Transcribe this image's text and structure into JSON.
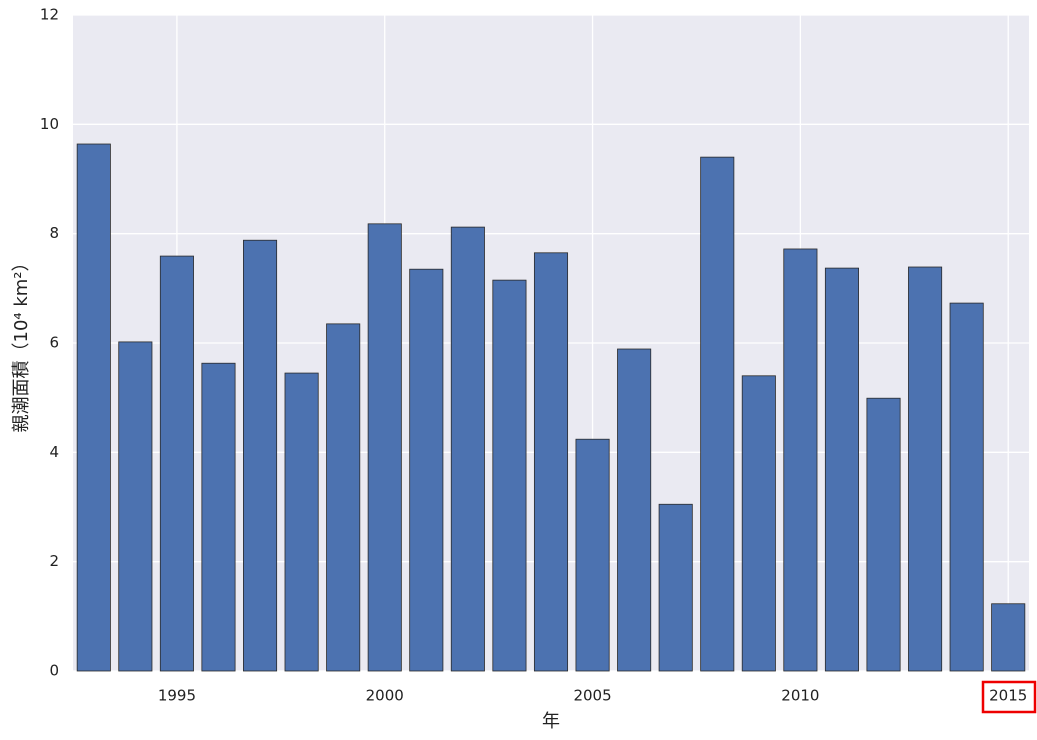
{
  "chart_data": {
    "type": "bar",
    "x_label": "年",
    "y_label": "親潮面積（10⁴ km²）",
    "x": [
      1993,
      1994,
      1995,
      1996,
      1997,
      1998,
      1999,
      2000,
      2001,
      2002,
      2003,
      2004,
      2005,
      2006,
      2007,
      2008,
      2009,
      2010,
      2011,
      2012,
      2013,
      2014,
      2015
    ],
    "values": [
      9.64,
      6.02,
      7.59,
      5.63,
      7.88,
      5.45,
      6.35,
      8.18,
      7.35,
      8.12,
      7.15,
      7.65,
      4.24,
      5.89,
      3.05,
      9.4,
      5.4,
      7.72,
      7.37,
      4.99,
      7.39,
      6.73,
      1.23
    ],
    "color": "#4c72b0",
    "xlim": [
      1992.5,
      2015.5
    ],
    "xticks": [
      1995,
      2000,
      2005,
      2010,
      2015
    ],
    "ylim": [
      0,
      12
    ],
    "yticks": [
      0,
      2,
      4,
      6,
      8,
      10,
      12
    ],
    "grid": true
  }
}
